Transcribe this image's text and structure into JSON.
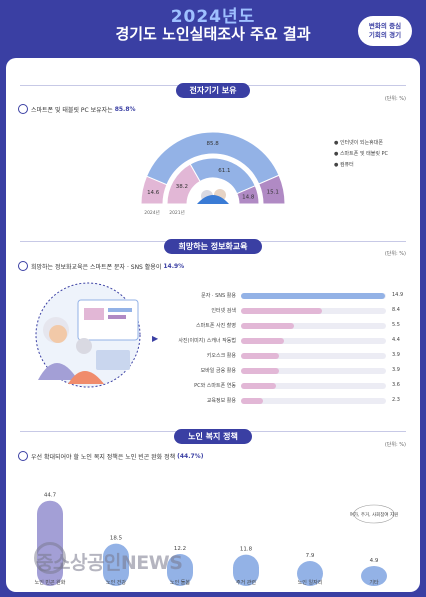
{
  "header": {
    "year": "2024년도",
    "title": "경기도 노인실태조사 주요 결과",
    "badge": "변화의 중심\n기회의 경기"
  },
  "section1": {
    "title": "전자기기 보유",
    "unit": "(단위: %)",
    "headline_prefix": "스마트폰 및 태블릿 PC 보유자는",
    "headline_value": "85.8%"
  },
  "section2": {
    "title": "희망하는 정보화교육",
    "unit": "(단위: %)",
    "headline_prefix": "희망하는 정보화교육은 스마트폰 문자 · SNS 활용이",
    "headline_value": "14.9%"
  },
  "section3": {
    "title": "노인 복지 정책",
    "unit": "(단위: %)",
    "headline_prefix": "우선 확대되어야 할 노인 복지 정책은 노인 빈곤 완화 정책",
    "headline_value": "(44.7%)"
  },
  "watermark": "중소상공인NEWS",
  "chart_data": [
    {
      "type": "bar",
      "subtype": "semicircle",
      "categories": [
        "2024년",
        "2021년"
      ],
      "series": [
        {
          "name": "인터넷이 되는휴대폰",
          "values": [
            14.6,
            38.2
          ],
          "color": "#e2b7d6"
        },
        {
          "name": "스마트폰 및 태블릿 PC",
          "values": [
            85.8,
            61.1
          ],
          "color": "#93b2e6"
        },
        {
          "name": "컴퓨터",
          "values": [
            15.1,
            14.8
          ],
          "color": "#b08ac4"
        }
      ],
      "legend": "right"
    },
    {
      "type": "bar",
      "orientation": "horizontal",
      "categories": [
        "문자 · SNS 활용",
        "인터넷 검색",
        "스마트폰 사진 촬영",
        "사진(이미지) 스캐너 작동법",
        "키오스크 활용",
        "모바일 금융 활용",
        "PC와 스마트폰 연동",
        "교육정보 활용"
      ],
      "values": [
        14.9,
        8.4,
        5.5,
        4.4,
        3.9,
        3.9,
        3.6,
        2.3
      ],
      "xlim": [
        0,
        15
      ]
    },
    {
      "type": "bar",
      "categories": [
        "노인 빈곤 완화",
        "노인 건강",
        "노인 돌봄",
        "주거 관련",
        "노인 일자리",
        "기타"
      ],
      "values": [
        44.7,
        18.5,
        12.2,
        11.8,
        7.9,
        4.9
      ],
      "ylim": [
        0,
        50
      ],
      "annotation": "여가, 주거, 사회참여 지원"
    }
  ]
}
